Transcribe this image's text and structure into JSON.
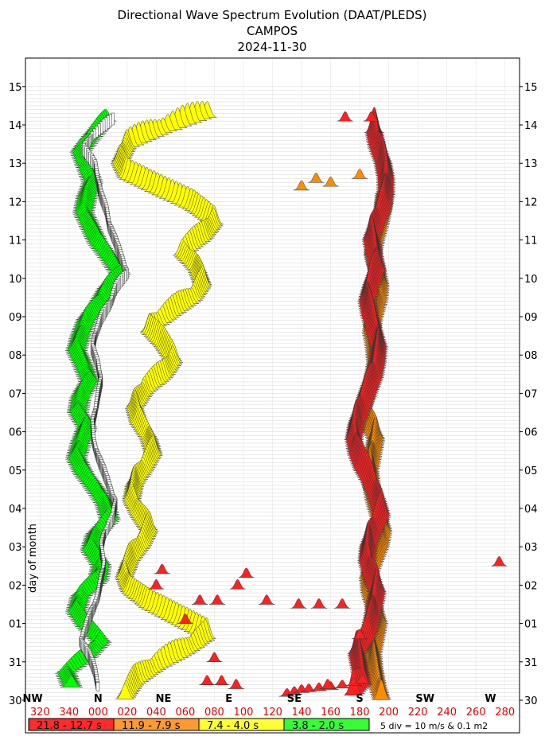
{
  "chart_data": {
    "type": "other",
    "title": "Directional Wave Spectrum Evolution (DAAT/PLEDS)",
    "subtitle": "CAMPOS",
    "date": "2024-11-30",
    "ylabel": "day of month",
    "y_ticks": [
      "30",
      "31",
      "01",
      "02",
      "03",
      "04",
      "05",
      "06",
      "07",
      "08",
      "09",
      "10",
      "11",
      "12",
      "13",
      "14",
      "15"
    ],
    "x_degree_ticks": [
      "320",
      "340",
      "000",
      "020",
      "040",
      "060",
      "080",
      "100",
      "120",
      "140",
      "160",
      "180",
      "200",
      "220",
      "240",
      "260",
      "280"
    ],
    "x_degree_values": [
      320,
      340,
      360,
      380,
      400,
      420,
      440,
      460,
      480,
      500,
      520,
      540,
      560,
      580,
      600,
      620,
      640
    ],
    "x_range": [
      310,
      650
    ],
    "cardinals": [
      {
        "label": "NW",
        "deg": 315
      },
      {
        "label": "N",
        "deg": 360
      },
      {
        "label": "NE",
        "deg": 405
      },
      {
        "label": "E",
        "deg": 450
      },
      {
        "label": "SE",
        "deg": 495
      },
      {
        "label": "S",
        "deg": 540
      },
      {
        "label": "SW",
        "deg": 585
      },
      {
        "label": "W",
        "deg": 630
      }
    ],
    "legend": [
      {
        "label": "21.8 - 12.7 s",
        "color": "#ff2a2a"
      },
      {
        "label": "11.9 - 7.9 s",
        "color": "#ff9a30"
      },
      {
        "label": "7.4 - 4.0 s",
        "color": "#ffff33"
      },
      {
        "label": "3.8 - 2.0 s",
        "color": "#33ff33"
      }
    ],
    "scale_note": "5 div = 10 m/s & 0.1 m2",
    "colors": {
      "red": "#ff2020",
      "orange": "#ff8c00",
      "yellow": "#ffff00",
      "green": "#00ff00",
      "wind": "#ffffff"
    },
    "tracks": [
      {
        "band": "red",
        "points": [
          [
            535,
            0.1
          ],
          [
            542,
            0.4
          ],
          [
            540,
            0.8
          ],
          [
            538,
            1.2
          ],
          [
            545,
            1.6
          ],
          [
            548,
            2.0
          ],
          [
            550,
            2.4
          ],
          [
            552,
            2.8
          ],
          [
            548,
            3.2
          ],
          [
            545,
            3.6
          ],
          [
            546,
            4.0
          ],
          [
            550,
            4.4
          ],
          [
            555,
            4.8
          ],
          [
            552,
            5.2
          ],
          [
            548,
            5.6
          ],
          [
            542,
            6.0
          ],
          [
            538,
            6.4
          ],
          [
            536,
            6.8
          ],
          [
            538,
            7.2
          ],
          [
            542,
            7.6
          ],
          [
            546,
            8.0
          ],
          [
            550,
            8.4
          ],
          [
            552,
            8.8
          ],
          [
            553,
            9.2
          ],
          [
            550,
            9.6
          ],
          [
            547,
            10.0
          ],
          [
            545,
            10.4
          ],
          [
            548,
            10.8
          ],
          [
            552,
            11.2
          ],
          [
            550,
            11.6
          ],
          [
            548,
            12.0
          ],
          [
            552,
            12.4
          ],
          [
            556,
            12.8
          ],
          [
            558,
            13.2
          ],
          [
            558,
            13.6
          ],
          [
            556,
            14.0
          ],
          [
            552,
            14.4
          ],
          [
            550,
            14.8
          ]
        ],
        "amp": 1.0
      },
      {
        "band": "orange",
        "points": [
          [
            555,
            0.0
          ],
          [
            552,
            0.4
          ],
          [
            550,
            0.8
          ],
          [
            549,
            1.2
          ],
          [
            551,
            1.6
          ],
          [
            553,
            2.0
          ],
          [
            550,
            2.4
          ],
          [
            547,
            2.8
          ],
          [
            546,
            3.2
          ],
          [
            550,
            3.6
          ],
          [
            554,
            4.0
          ],
          [
            556,
            4.4
          ],
          [
            553,
            4.8
          ],
          [
            550,
            5.2
          ],
          [
            548,
            5.6
          ],
          [
            547,
            6.0
          ],
          [
            549,
            6.4
          ],
          [
            551,
            6.8
          ],
          [
            546,
            7.2
          ],
          [
            542,
            7.6
          ],
          [
            545,
            8.0
          ],
          [
            549,
            8.4
          ],
          [
            551,
            8.8
          ],
          [
            550,
            9.2
          ],
          [
            548,
            9.6
          ],
          [
            550,
            10.0
          ],
          [
            553,
            10.4
          ],
          [
            554,
            10.8
          ],
          [
            552,
            11.2
          ],
          [
            549,
            11.6
          ],
          [
            551,
            12.0
          ],
          [
            554,
            12.4
          ],
          [
            556,
            12.8
          ],
          [
            557,
            13.2
          ]
        ],
        "amp": 0.9
      },
      {
        "band": "yellow",
        "points": [
          [
            378,
            0.0
          ],
          [
            385,
            0.4
          ],
          [
            400,
            0.8
          ],
          [
            420,
            1.2
          ],
          [
            435,
            1.6
          ],
          [
            415,
            2.0
          ],
          [
            395,
            2.4
          ],
          [
            382,
            2.8
          ],
          [
            378,
            3.2
          ],
          [
            382,
            3.6
          ],
          [
            390,
            4.0
          ],
          [
            395,
            4.4
          ],
          [
            388,
            4.8
          ],
          [
            383,
            5.2
          ],
          [
            385,
            5.6
          ],
          [
            392,
            6.0
          ],
          [
            398,
            6.4
          ],
          [
            395,
            6.8
          ],
          [
            388,
            7.2
          ],
          [
            385,
            7.6
          ],
          [
            392,
            8.0
          ],
          [
            405,
            8.4
          ],
          [
            412,
            8.8
          ],
          [
            405,
            9.2
          ],
          [
            395,
            9.6
          ],
          [
            410,
            10.0
          ],
          [
            425,
            10.4
          ],
          [
            432,
            10.8
          ],
          [
            428,
            11.2
          ],
          [
            418,
            11.6
          ],
          [
            432,
            12.0
          ],
          [
            440,
            12.4
          ],
          [
            425,
            12.8
          ],
          [
            402,
            13.2
          ],
          [
            380,
            13.6
          ],
          [
            375,
            14.0
          ],
          [
            380,
            14.4
          ],
          [
            405,
            14.8
          ],
          [
            435,
            15.2
          ]
        ],
        "amp": 0.8
      },
      {
        "band": "green",
        "points": [
          [
            342,
            0.3
          ],
          [
            338,
            0.7
          ],
          [
            352,
            1.1
          ],
          [
            362,
            1.5
          ],
          [
            352,
            1.9
          ],
          [
            345,
            2.3
          ],
          [
            348,
            2.7
          ],
          [
            360,
            3.1
          ],
          [
            362,
            3.5
          ],
          [
            355,
            3.9
          ],
          [
            358,
            4.3
          ],
          [
            368,
            4.7
          ],
          [
            365,
            5.1
          ],
          [
            358,
            5.5
          ],
          [
            350,
            5.9
          ],
          [
            345,
            6.3
          ],
          [
            348,
            6.7
          ],
          [
            352,
            7.1
          ],
          [
            346,
            7.5
          ],
          [
            348,
            7.9
          ],
          [
            354,
            8.3
          ],
          [
            350,
            8.7
          ],
          [
            345,
            9.1
          ],
          [
            348,
            9.5
          ],
          [
            352,
            9.9
          ],
          [
            360,
            10.3
          ],
          [
            366,
            10.7
          ],
          [
            375,
            11.1
          ],
          [
            368,
            11.5
          ],
          [
            360,
            11.9
          ],
          [
            355,
            12.3
          ],
          [
            350,
            12.7
          ],
          [
            352,
            13.1
          ],
          [
            356,
            13.5
          ],
          [
            352,
            13.9
          ],
          [
            348,
            14.3
          ],
          [
            356,
            14.7
          ],
          [
            365,
            15.1
          ]
        ],
        "amp": 0.6
      },
      {
        "band": "wind",
        "points": [
          [
            360,
            0.2
          ],
          [
            358,
            0.6
          ],
          [
            354,
            1.0
          ],
          [
            348,
            1.4
          ],
          [
            352,
            1.8
          ],
          [
            356,
            2.2
          ],
          [
            360,
            2.6
          ],
          [
            362,
            3.0
          ],
          [
            364,
            3.4
          ],
          [
            362,
            3.8
          ],
          [
            364,
            4.2
          ],
          [
            370,
            4.6
          ],
          [
            372,
            5.0
          ],
          [
            368,
            5.4
          ],
          [
            364,
            5.8
          ],
          [
            360,
            6.2
          ],
          [
            357,
            6.6
          ],
          [
            356,
            7.0
          ],
          [
            358,
            7.4
          ],
          [
            360,
            7.8
          ],
          [
            362,
            8.2
          ],
          [
            360,
            8.6
          ],
          [
            356,
            9.0
          ],
          [
            358,
            9.4
          ],
          [
            362,
            9.8
          ],
          [
            368,
            10.2
          ],
          [
            372,
            10.6
          ],
          [
            380,
            11.0
          ],
          [
            376,
            11.4
          ],
          [
            372,
            11.8
          ],
          [
            368,
            12.2
          ],
          [
            366,
            12.6
          ],
          [
            362,
            13.0
          ],
          [
            360,
            13.4
          ],
          [
            358,
            13.8
          ],
          [
            350,
            14.2
          ],
          [
            356,
            14.6
          ],
          [
            370,
            15.0
          ]
        ],
        "amp": 0.4
      }
    ],
    "isolated": [
      {
        "band": "red",
        "deg": 636,
        "day": 3.5
      },
      {
        "band": "red",
        "deg": 462,
        "day": 3.2
      },
      {
        "band": "red",
        "deg": 456,
        "day": 2.9
      },
      {
        "band": "red",
        "deg": 442,
        "day": 2.5
      },
      {
        "band": "red",
        "deg": 476,
        "day": 2.5
      },
      {
        "band": "red",
        "deg": 498,
        "day": 2.4
      },
      {
        "band": "red",
        "deg": 512,
        "day": 2.4
      },
      {
        "band": "red",
        "deg": 528,
        "day": 2.4
      },
      {
        "band": "red",
        "deg": 540,
        "day": 1.6
      },
      {
        "band": "red",
        "deg": 440,
        "day": 1.0
      },
      {
        "band": "red",
        "deg": 455,
        "day": 0.3
      },
      {
        "band": "red",
        "deg": 518,
        "day": 0.3
      },
      {
        "band": "red",
        "deg": 445,
        "day": 0.4
      },
      {
        "band": "red",
        "deg": 404,
        "day": 3.3
      },
      {
        "band": "red",
        "deg": 400,
        "day": 2.9
      },
      {
        "band": "red",
        "deg": 430,
        "day": 2.5
      },
      {
        "band": "red",
        "deg": 420,
        "day": 2.0
      },
      {
        "band": "red",
        "deg": 435,
        "day": 0.4
      },
      {
        "band": "red",
        "deg": 530,
        "day": 15.1
      },
      {
        "band": "red",
        "deg": 548,
        "day": 15.1
      },
      {
        "band": "orange",
        "deg": 500,
        "day": 13.3
      },
      {
        "band": "orange",
        "deg": 510,
        "day": 13.5
      },
      {
        "band": "orange",
        "deg": 520,
        "day": 13.4
      },
      {
        "band": "orange",
        "deg": 540,
        "day": 13.6
      }
    ],
    "tail": [
      {
        "deg": 490,
        "day": 0.1
      },
      {
        "deg": 495,
        "day": 0.15
      },
      {
        "deg": 500,
        "day": 0.2
      },
      {
        "deg": 505,
        "day": 0.22
      },
      {
        "deg": 512,
        "day": 0.25
      },
      {
        "deg": 520,
        "day": 0.28
      },
      {
        "deg": 528,
        "day": 0.32
      },
      {
        "deg": 536,
        "day": 0.38
      },
      {
        "deg": 542,
        "day": 0.45
      }
    ]
  }
}
